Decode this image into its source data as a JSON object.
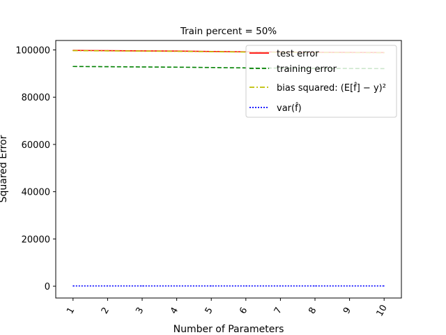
{
  "chart_data": {
    "type": "line",
    "title": "Train percent = 50%",
    "xlabel": "Number of Parameters",
    "ylabel": "Squared Error",
    "x": [
      1,
      2,
      3,
      4,
      5,
      6,
      7,
      8,
      9,
      10
    ],
    "xlim": [
      0.5,
      10.5
    ],
    "ylim": [
      -5000,
      104000
    ],
    "yticks": [
      0,
      20000,
      40000,
      60000,
      80000,
      100000
    ],
    "grid": false,
    "legend_position": "top-right",
    "series": [
      {
        "name": "test error",
        "style": "solid",
        "color": "#ff0000",
        "values": [
          99800,
          99700,
          99600,
          99500,
          99350,
          99200,
          99100,
          99000,
          98950,
          98900
        ]
      },
      {
        "name": "training error",
        "style": "dashed",
        "color": "#008000",
        "values": [
          93000,
          92900,
          92800,
          92700,
          92550,
          92400,
          92300,
          92200,
          92150,
          92100
        ]
      },
      {
        "name": "bias squared: (E[f̂] − y)²",
        "style": "dashdot",
        "color": "#bfbf00",
        "values": [
          99700,
          99600,
          99500,
          99400,
          99250,
          99100,
          99000,
          98900,
          98850,
          98800
        ]
      },
      {
        "name": "var(f̂)",
        "style": "dotted",
        "color": "#0000ff",
        "values": [
          100,
          100,
          100,
          100,
          100,
          100,
          100,
          100,
          100,
          100
        ]
      }
    ]
  }
}
